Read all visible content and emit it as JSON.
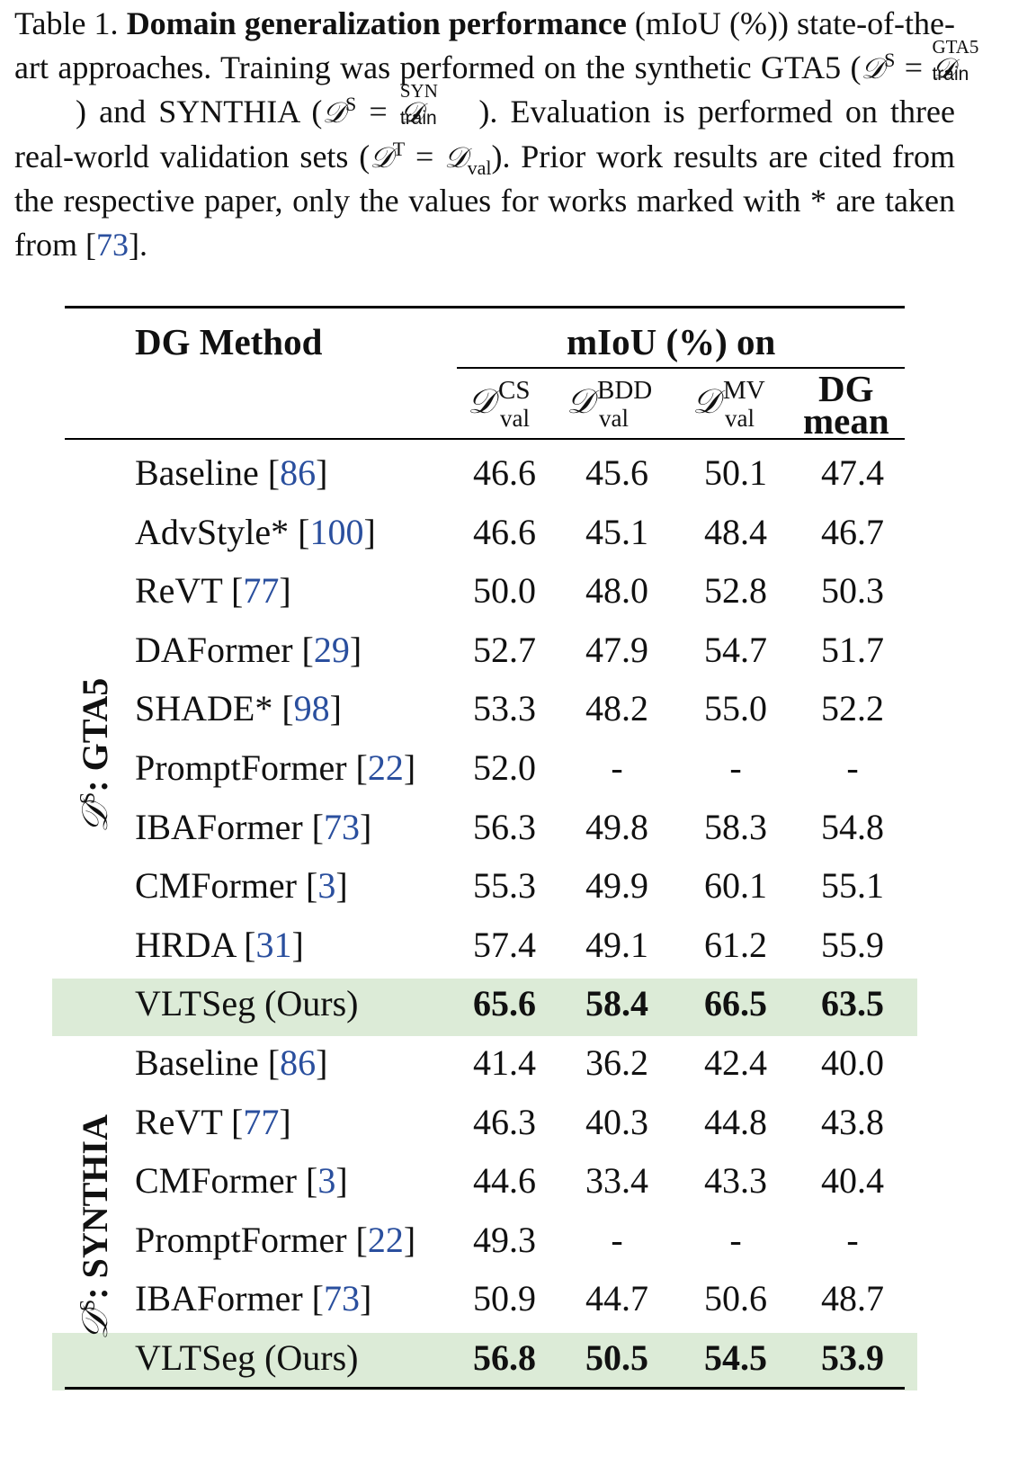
{
  "caption": {
    "label": "Table 1.",
    "bold_title": "Domain generalization performance",
    "text_1": " (mIoU (%)) state-of-the-art approaches. Training was performed on the synthetic GTA5 (",
    "ds_symbol": "𝒟",
    "ds_sup": "S",
    "eq": " = ",
    "gta_up": "GTA5",
    "train_dn": "train",
    "text_2": ") and SYNTHIA (",
    "syn_up": "SYN",
    "text_3": "). Evaluation is performed on three real-world validation sets (",
    "dt_sup": "T",
    "val_dn": "val",
    "text_4": "). Prior work results are cited from the respective paper, only the values for works marked with * are taken from [",
    "ref": "73",
    "text_5": "]."
  },
  "table": {
    "method_header": "DG Method",
    "group_header": "mIoU (%) on",
    "columns": [
      {
        "sup": "CS",
        "sub": "val"
      },
      {
        "sup": "BDD",
        "sub": "val"
      },
      {
        "sup": "MV",
        "sub": "val"
      },
      {
        "line1": "DG",
        "line2": "mean"
      }
    ],
    "groups": [
      {
        "label_prefix": "𝒟",
        "label_sup": "S",
        "label_name": ": GTA5",
        "rows": [
          {
            "method": "Baseline ",
            "ref": "86",
            "values": [
              "46.6",
              "45.6",
              "50.1",
              "47.4"
            ]
          },
          {
            "method": "AdvStyle* ",
            "ref": "100",
            "values": [
              "46.6",
              "45.1",
              "48.4",
              "46.7"
            ]
          },
          {
            "method": "ReVT ",
            "ref": "77",
            "values": [
              "50.0",
              "48.0",
              "52.8",
              "50.3"
            ]
          },
          {
            "method": "DAFormer ",
            "ref": "29",
            "values": [
              "52.7",
              "47.9",
              "54.7",
              "51.7"
            ]
          },
          {
            "method": "SHADE* ",
            "ref": "98",
            "values": [
              "53.3",
              "48.2",
              "55.0",
              "52.2"
            ]
          },
          {
            "method": "PromptFormer ",
            "ref": "22",
            "values": [
              "52.0",
              "-",
              "-",
              "-"
            ]
          },
          {
            "method": "IBAFormer ",
            "ref": "73",
            "values": [
              "56.3",
              "49.8",
              "58.3",
              "54.8"
            ]
          },
          {
            "method": "CMFormer ",
            "ref": "3",
            "values": [
              "55.3",
              "49.9",
              "60.1",
              "55.1"
            ]
          },
          {
            "method": "HRDA ",
            "ref": "31",
            "values": [
              "57.4",
              "49.1",
              "61.2",
              "55.9"
            ]
          },
          {
            "method": "VLTSeg (Ours)",
            "ref": "",
            "values": [
              "65.6",
              "58.4",
              "66.5",
              "63.5"
            ],
            "highlight": true
          }
        ]
      },
      {
        "label_prefix": "𝒟",
        "label_sup": "S",
        "label_name": ": SYNTHIA",
        "rows": [
          {
            "method": "Baseline ",
            "ref": "86",
            "values": [
              "41.4",
              "36.2",
              "42.4",
              "40.0"
            ]
          },
          {
            "method": "ReVT ",
            "ref": "77",
            "values": [
              "46.3",
              "40.3",
              "44.8",
              "43.8"
            ]
          },
          {
            "method": "CMFormer ",
            "ref": "3",
            "values": [
              "44.6",
              "33.4",
              "43.3",
              "40.4"
            ]
          },
          {
            "method": "PromptFormer ",
            "ref": "22",
            "values": [
              "49.3",
              "-",
              "-",
              "-"
            ]
          },
          {
            "method": "IBAFormer ",
            "ref": "73",
            "values": [
              "50.9",
              "44.7",
              "50.6",
              "48.7"
            ]
          },
          {
            "method": "VLTSeg (Ours)",
            "ref": "",
            "values": [
              "56.8",
              "50.5",
              "54.5",
              "53.9"
            ],
            "highlight": true
          }
        ]
      }
    ],
    "highlight_color": "#dcebd7",
    "link_color": "#2a4f9e"
  }
}
